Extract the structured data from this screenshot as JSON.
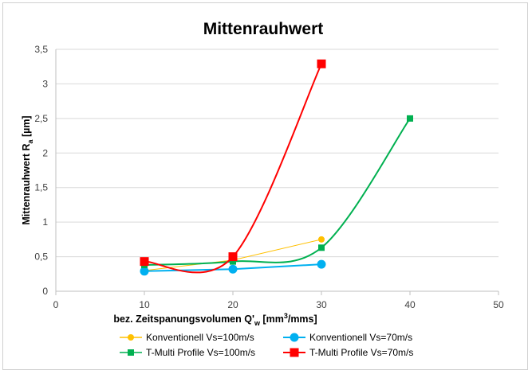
{
  "chart_data": {
    "type": "line",
    "title": "Mittenrauhwert",
    "xlabel": {
      "main": "bez. Zeitspanungsvolumen  Q'",
      "sub": "w",
      "unit_pre": " [mm",
      "sup": "3",
      "unit_post": "/mms]"
    },
    "ylabel": {
      "main": "Mittenrauhwert  R",
      "sub": "a",
      "unit": " [µm]"
    },
    "xlim": [
      0,
      50
    ],
    "ylim": [
      0,
      3.5
    ],
    "x_ticks": [
      "0",
      "10",
      "20",
      "30",
      "40",
      "50"
    ],
    "y_ticks": [
      "0",
      "0,5",
      "1",
      "1,5",
      "2",
      "2,5",
      "3",
      "3,5"
    ],
    "grid": "horizontal",
    "legend_position": "bottom",
    "series": [
      {
        "name": "Konventionell  Vs=100m/s",
        "color": "#FFC000",
        "marker": "circle",
        "marker_size": "small",
        "smooth": false,
        "points": [
          [
            10,
            0.3
          ],
          [
            20,
            0.45
          ],
          [
            30,
            0.75
          ]
        ]
      },
      {
        "name": "Konventionell  Vs=70m/s",
        "color": "#00B0F0",
        "marker": "circle",
        "marker_size": "large",
        "smooth": false,
        "points": [
          [
            10,
            0.29
          ],
          [
            20,
            0.32
          ],
          [
            30,
            0.39
          ]
        ]
      },
      {
        "name": "T-Multi Profile  Vs=100m/s",
        "color": "#00B050",
        "marker": "square",
        "marker_size": "small",
        "smooth": true,
        "points": [
          [
            10,
            0.38
          ],
          [
            20,
            0.43
          ],
          [
            30,
            0.63
          ],
          [
            40,
            2.5
          ]
        ]
      },
      {
        "name": "T-Multi Profile  Vs=70m/s",
        "color": "#FF0000",
        "marker": "square",
        "marker_size": "large",
        "smooth": true,
        "points": [
          [
            10,
            0.43
          ],
          [
            20,
            0.5
          ],
          [
            30,
            3.29
          ]
        ]
      }
    ]
  }
}
